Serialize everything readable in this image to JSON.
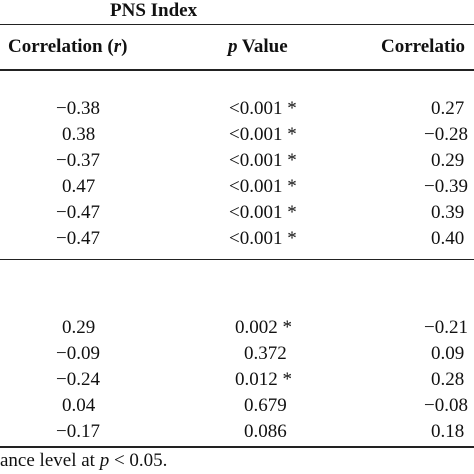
{
  "group_header": "PNS Index",
  "columns": {
    "col1_prefix": "Correlation (",
    "col1_var": "r",
    "col1_suffix": ")",
    "col2_var": "p",
    "col2_suffix": " Value",
    "col3": "Correlatio"
  },
  "block1": [
    {
      "r": "−0.38",
      "p": "<0.001 *",
      "r2": "0.27"
    },
    {
      "r": "0.38",
      "p": "<0.001 *",
      "r2": "−0.28"
    },
    {
      "r": "−0.37",
      "p": "<0.001 *",
      "r2": "0.29"
    },
    {
      "r": "0.47",
      "p": "<0.001 *",
      "r2": "−0.39"
    },
    {
      "r": "−0.47",
      "p": "<0.001 *",
      "r2": "0.39"
    },
    {
      "r": "−0.47",
      "p": "<0.001 *",
      "r2": "0.40"
    }
  ],
  "block2": [
    {
      "r": "0.29",
      "p": "0.002 *",
      "r2": "−0.21"
    },
    {
      "r": "−0.09",
      "p": "0.372",
      "r2": "0.09"
    },
    {
      "r": "−0.24",
      "p": "0.012 *",
      "r2": "0.28"
    },
    {
      "r": "0.04",
      "p": "0.679",
      "r2": "−0.08"
    },
    {
      "r": "−0.17",
      "p": "0.086",
      "r2": "0.18"
    }
  ],
  "footnote": {
    "prefix": "ance level at ",
    "var": "p",
    "suffix": " < 0.05."
  }
}
